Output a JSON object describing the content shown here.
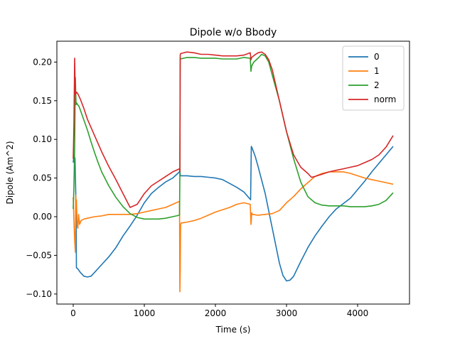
{
  "chart_data": {
    "type": "line",
    "title": "Dipole w/o Bbody",
    "xlabel": "Time (s)",
    "ylabel": "Dipole (Am^2)",
    "xlim": [
      -230,
      4730
    ],
    "ylim": [
      -0.113,
      0.227
    ],
    "xticks": [
      0,
      1000,
      2000,
      3000,
      4000
    ],
    "xtick_labels": [
      "0",
      "1000",
      "2000",
      "3000",
      "4000"
    ],
    "yticks": [
      -0.1,
      -0.05,
      0.0,
      0.05,
      0.1,
      0.15,
      0.2
    ],
    "ytick_labels": [
      "−0.10",
      "−0.05",
      "0.00",
      "0.05",
      "0.10",
      "0.15",
      "0.20"
    ],
    "grid": false,
    "legend_position": "top-right",
    "series": [
      {
        "name": "0",
        "color": "#1f77b4",
        "x": [
          0,
          10,
          25,
          40,
          45,
          60,
          100,
          150,
          200,
          250,
          300,
          400,
          500,
          600,
          700,
          800,
          900,
          1000,
          1100,
          1200,
          1300,
          1400,
          1495,
          1500,
          1505,
          1510,
          1600,
          1700,
          1800,
          1900,
          2000,
          2100,
          2200,
          2300,
          2400,
          2495,
          2505,
          2520,
          2560,
          2600,
          2700,
          2800,
          2900,
          2950,
          3000,
          3050,
          3100,
          3200,
          3300,
          3400,
          3500,
          3600,
          3700,
          3800,
          3900,
          4000,
          4100,
          4200,
          4300,
          4400,
          4500
        ],
        "y": [
          0.07,
          0.08,
          0.075,
          0.012,
          -0.066,
          -0.067,
          -0.072,
          -0.077,
          -0.078,
          -0.077,
          -0.072,
          -0.062,
          -0.052,
          -0.04,
          -0.025,
          -0.012,
          0.002,
          0.018,
          0.03,
          0.038,
          0.045,
          0.05,
          0.058,
          0.062,
          0.054,
          0.053,
          0.053,
          0.052,
          0.052,
          0.051,
          0.05,
          0.048,
          0.043,
          0.038,
          0.032,
          0.022,
          0.091,
          0.088,
          0.078,
          0.065,
          0.03,
          -0.015,
          -0.06,
          -0.076,
          -0.083,
          -0.082,
          -0.077,
          -0.058,
          -0.04,
          -0.025,
          -0.012,
          0.0,
          0.01,
          0.017,
          0.024,
          0.035,
          0.046,
          0.058,
          0.069,
          0.08,
          0.091
        ]
      },
      {
        "name": "1",
        "color": "#ff7f0e",
        "x": [
          0,
          10,
          20,
          30,
          35,
          40,
          45,
          55,
          65,
          75,
          90,
          110,
          150,
          200,
          300,
          400,
          500,
          600,
          700,
          800,
          900,
          1000,
          1100,
          1200,
          1300,
          1400,
          1495,
          1500,
          1505,
          1510,
          1520,
          1540,
          1600,
          1700,
          1800,
          1900,
          2000,
          2100,
          2200,
          2300,
          2400,
          2490,
          2500,
          2505,
          2510,
          2520,
          2600,
          2700,
          2800,
          2900,
          3000,
          3100,
          3200,
          3300,
          3400,
          3500,
          3600,
          3700,
          3800,
          3900,
          4000,
          4100,
          4200,
          4300,
          4400,
          4500
        ],
        "y": [
          0.025,
          -0.005,
          -0.03,
          -0.046,
          0.028,
          0.008,
          0.022,
          -0.012,
          -0.015,
          0.003,
          -0.01,
          -0.005,
          -0.003,
          -0.002,
          0.0,
          0.001,
          0.003,
          0.003,
          0.003,
          0.003,
          0.004,
          0.006,
          0.008,
          0.01,
          0.012,
          0.016,
          0.02,
          -0.097,
          -0.07,
          -0.01,
          -0.008,
          -0.008,
          -0.007,
          -0.005,
          -0.002,
          0.002,
          0.006,
          0.009,
          0.012,
          0.016,
          0.018,
          0.016,
          -0.01,
          -0.005,
          0.005,
          0.003,
          0.002,
          0.003,
          0.004,
          0.008,
          0.018,
          0.026,
          0.036,
          0.044,
          0.052,
          0.056,
          0.058,
          0.058,
          0.058,
          0.056,
          0.053,
          0.05,
          0.048,
          0.046,
          0.044,
          0.042
        ]
      },
      {
        "name": "2",
        "color": "#2ca02c",
        "x": [
          0,
          10,
          20,
          30,
          40,
          50,
          60,
          80,
          100,
          150,
          200,
          250,
          300,
          350,
          400,
          500,
          600,
          700,
          800,
          900,
          1000,
          1100,
          1200,
          1300,
          1400,
          1495,
          1500,
          1505,
          1510,
          1600,
          1700,
          1800,
          1900,
          2000,
          2100,
          2200,
          2300,
          2400,
          2490,
          2500,
          2510,
          2540,
          2600,
          2650,
          2700,
          2750,
          2800,
          2900,
          3000,
          3100,
          3200,
          3300,
          3400,
          3500,
          3600,
          3700,
          3800,
          3900,
          4000,
          4100,
          4200,
          4300,
          4400,
          4500
        ],
        "y": [
          0.01,
          0.04,
          0.09,
          0.18,
          0.145,
          0.147,
          0.145,
          0.143,
          0.138,
          0.125,
          0.112,
          0.097,
          0.083,
          0.07,
          0.058,
          0.04,
          0.025,
          0.013,
          0.004,
          -0.001,
          -0.003,
          -0.003,
          -0.003,
          -0.002,
          0.0,
          0.002,
          0.052,
          0.205,
          0.204,
          0.206,
          0.206,
          0.205,
          0.205,
          0.205,
          0.204,
          0.204,
          0.204,
          0.206,
          0.205,
          0.188,
          0.195,
          0.2,
          0.205,
          0.21,
          0.208,
          0.2,
          0.183,
          0.15,
          0.11,
          0.075,
          0.045,
          0.026,
          0.018,
          0.015,
          0.014,
          0.014,
          0.014,
          0.013,
          0.013,
          0.013,
          0.014,
          0.016,
          0.021,
          0.031
        ]
      },
      {
        "name": "norm",
        "color": "#d62728",
        "x": [
          0,
          10,
          20,
          25,
          30,
          40,
          50,
          70,
          100,
          150,
          200,
          300,
          400,
          500,
          600,
          700,
          800,
          900,
          1000,
          1100,
          1200,
          1300,
          1400,
          1495,
          1500,
          1505,
          1510,
          1600,
          1700,
          1800,
          1900,
          2000,
          2100,
          2200,
          2300,
          2400,
          2490,
          2500,
          2510,
          2550,
          2600,
          2650,
          2700,
          2750,
          2800,
          2900,
          3000,
          3100,
          3200,
          3300,
          3350,
          3400,
          3500,
          3600,
          3700,
          3800,
          3900,
          4000,
          4100,
          4200,
          4300,
          4400,
          4500
        ],
        "y": [
          0.075,
          0.12,
          0.205,
          0.18,
          0.158,
          0.16,
          0.161,
          0.158,
          0.152,
          0.14,
          0.126,
          0.105,
          0.084,
          0.065,
          0.048,
          0.03,
          0.012,
          0.016,
          0.03,
          0.04,
          0.046,
          0.052,
          0.058,
          0.062,
          0.058,
          0.209,
          0.211,
          0.213,
          0.212,
          0.21,
          0.21,
          0.209,
          0.208,
          0.208,
          0.208,
          0.209,
          0.212,
          0.203,
          0.206,
          0.209,
          0.212,
          0.213,
          0.21,
          0.203,
          0.19,
          0.15,
          0.11,
          0.08,
          0.064,
          0.056,
          0.051,
          0.052,
          0.055,
          0.058,
          0.06,
          0.062,
          0.064,
          0.066,
          0.07,
          0.074,
          0.08,
          0.09,
          0.105
        ]
      }
    ]
  }
}
